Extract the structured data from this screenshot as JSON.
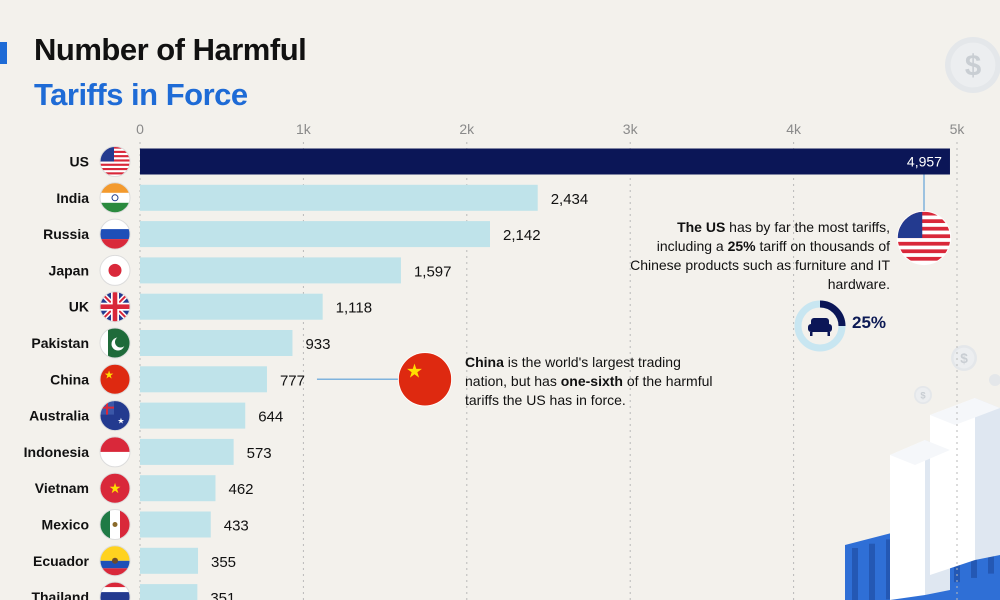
{
  "title_line1": "Number of Harmful",
  "title_line2": "Tariffs in Force",
  "annotations": {
    "us": {
      "bold_lead": "The US",
      "text_a": " has by far the most tariffs, including a ",
      "bold_pct": "25%",
      "text_b": " tariff on thousands of Chinese products such as furniture and IT hardware."
    },
    "china": {
      "bold_lead": "China",
      "text_a": " is the world's largest trading nation, but has ",
      "bold_mid": "one-sixth",
      "text_b": " of the harmful tariffs the US has in force."
    },
    "donut_label": "25%"
  },
  "colors": {
    "highlight_bar": "#0b1657",
    "bar": "#bfe3ea",
    "title_accent": "#1e6bd6"
  },
  "icons": [
    "us-flag-icon",
    "india-flag-icon",
    "russia-flag-icon",
    "japan-flag-icon",
    "uk-flag-icon",
    "pakistan-flag-icon",
    "china-flag-icon",
    "australia-flag-icon",
    "indonesia-flag-icon",
    "vietnam-flag-icon",
    "mexico-flag-icon",
    "ecuador-flag-icon",
    "thailand-flag-icon",
    "dollar-coin-icon",
    "armchair-icon",
    "shipping-container-icon"
  ],
  "chart_data": {
    "type": "bar",
    "orientation": "horizontal",
    "title": "Number of Harmful Tariffs in Force",
    "categories": [
      "US",
      "India",
      "Russia",
      "Japan",
      "UK",
      "Pakistan",
      "China",
      "Australia",
      "Indonesia",
      "Vietnam",
      "Mexico",
      "Ecuador",
      "Thailand"
    ],
    "values": [
      4957,
      2434,
      2142,
      1597,
      1118,
      933,
      777,
      644,
      573,
      462,
      433,
      355,
      351
    ],
    "value_labels": [
      "4,957",
      "2,434",
      "2,142",
      "1,597",
      "1,118",
      "933",
      "777",
      "644",
      "573",
      "462",
      "433",
      "355",
      "351"
    ],
    "xlim": [
      0,
      5000
    ],
    "xticks": [
      0,
      1000,
      2000,
      3000,
      4000,
      5000
    ],
    "xtick_labels": [
      "0",
      "1k",
      "2k",
      "3k",
      "4k",
      "5k"
    ],
    "axis_position": "top",
    "grid": true,
    "highlight_category": "US"
  }
}
